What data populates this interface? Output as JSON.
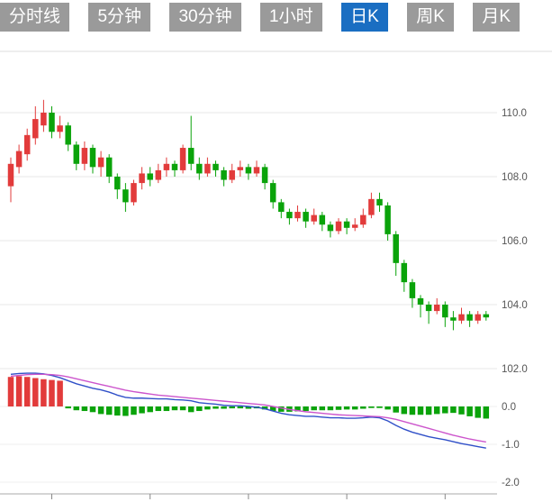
{
  "tabs": {
    "items": [
      {
        "label": "分时线",
        "active": false
      },
      {
        "label": "5分钟",
        "active": false
      },
      {
        "label": "30分钟",
        "active": false
      },
      {
        "label": "1小时",
        "active": false
      },
      {
        "label": "日K",
        "active": true
      },
      {
        "label": "周K",
        "active": false
      },
      {
        "label": "月K",
        "active": false
      }
    ],
    "inactive_bg": "#9a9a9a",
    "active_bg": "#1a6ec2",
    "text_color": "#ffffff"
  },
  "chart_data": {
    "type": "candlestick",
    "subtype": "daily-k-with-macd",
    "title": "",
    "up_color": "#e23b3b",
    "down_color": "#0aa30a",
    "dif_color": "#3050c8",
    "dea_color": "#cc55cc",
    "grid_color": "#e7e7e7",
    "axis_label_color": "#555555",
    "price_axis": {
      "side": "right",
      "ticks": [
        110.0,
        108.0,
        106.0,
        104.0,
        102.0
      ]
    },
    "macd_axis": {
      "side": "right",
      "ticks": [
        0.0,
        -1.0,
        -2.0
      ]
    },
    "candles": [
      [
        107.7,
        108.6,
        107.2,
        108.4
      ],
      [
        108.3,
        109.0,
        108.1,
        108.8
      ],
      [
        108.7,
        109.5,
        108.5,
        109.3
      ],
      [
        109.2,
        110.2,
        109.0,
        109.8
      ],
      [
        109.6,
        110.4,
        109.4,
        110.0
      ],
      [
        110.0,
        110.2,
        109.2,
        109.4
      ],
      [
        109.4,
        109.9,
        109.2,
        109.6
      ],
      [
        109.6,
        109.7,
        108.8,
        109.0
      ],
      [
        109.0,
        109.1,
        108.2,
        108.4
      ],
      [
        108.4,
        109.1,
        108.2,
        108.9
      ],
      [
        108.9,
        109.0,
        108.1,
        108.3
      ],
      [
        108.3,
        108.8,
        108.0,
        108.6
      ],
      [
        108.6,
        108.7,
        107.8,
        108.0
      ],
      [
        108.0,
        108.1,
        107.3,
        107.6
      ],
      [
        107.6,
        107.8,
        106.9,
        107.2
      ],
      [
        107.2,
        107.9,
        107.1,
        107.8
      ],
      [
        107.8,
        108.3,
        107.6,
        108.1
      ],
      [
        108.1,
        108.3,
        107.7,
        107.9
      ],
      [
        107.9,
        108.4,
        107.8,
        108.2
      ],
      [
        108.2,
        108.6,
        108.0,
        108.4
      ],
      [
        108.4,
        108.5,
        108.0,
        108.2
      ],
      [
        108.2,
        109.0,
        108.1,
        108.9
      ],
      [
        108.9,
        109.9,
        108.2,
        108.4
      ],
      [
        108.4,
        108.6,
        107.9,
        108.1
      ],
      [
        108.1,
        108.6,
        108.0,
        108.4
      ],
      [
        108.4,
        108.5,
        108.0,
        108.2
      ],
      [
        108.2,
        108.3,
        107.7,
        107.9
      ],
      [
        107.9,
        108.4,
        107.8,
        108.2
      ],
      [
        108.2,
        108.5,
        108.0,
        108.3
      ],
      [
        108.3,
        108.4,
        107.9,
        108.1
      ],
      [
        108.1,
        108.5,
        108.0,
        108.3
      ],
      [
        108.3,
        108.4,
        107.6,
        107.8
      ],
      [
        107.8,
        107.9,
        107.0,
        107.2
      ],
      [
        107.2,
        107.3,
        106.7,
        106.9
      ],
      [
        106.9,
        107.0,
        106.5,
        106.7
      ],
      [
        106.7,
        107.1,
        106.6,
        106.9
      ],
      [
        106.9,
        107.0,
        106.4,
        106.6
      ],
      [
        106.6,
        107.0,
        106.5,
        106.8
      ],
      [
        106.8,
        106.9,
        106.3,
        106.5
      ],
      [
        106.5,
        106.6,
        106.1,
        106.3
      ],
      [
        106.3,
        106.7,
        106.2,
        106.6
      ],
      [
        106.6,
        106.7,
        106.2,
        106.4
      ],
      [
        106.4,
        106.7,
        106.3,
        106.5
      ],
      [
        106.5,
        107.0,
        106.4,
        106.8
      ],
      [
        106.8,
        107.5,
        106.7,
        107.3
      ],
      [
        107.3,
        107.5,
        106.9,
        107.1
      ],
      [
        107.1,
        107.2,
        106.0,
        106.2
      ],
      [
        106.2,
        106.3,
        104.9,
        105.3
      ],
      [
        105.3,
        105.4,
        104.4,
        104.7
      ],
      [
        104.7,
        104.8,
        103.9,
        104.2
      ],
      [
        104.2,
        104.3,
        103.6,
        104.0
      ],
      [
        104.0,
        104.1,
        103.4,
        103.8
      ],
      [
        103.8,
        104.2,
        103.7,
        104.0
      ],
      [
        104.0,
        104.1,
        103.3,
        103.6
      ],
      [
        103.6,
        103.8,
        103.2,
        103.5
      ],
      [
        103.5,
        103.9,
        103.4,
        103.7
      ],
      [
        103.7,
        103.8,
        103.3,
        103.5
      ],
      [
        103.5,
        103.8,
        103.4,
        103.7
      ],
      [
        103.7,
        103.8,
        103.5,
        103.6
      ]
    ],
    "macd": {
      "dif": [
        0.85,
        0.87,
        0.88,
        0.88,
        0.86,
        0.82,
        0.76,
        0.68,
        0.6,
        0.54,
        0.48,
        0.44,
        0.38,
        0.3,
        0.24,
        0.22,
        0.22,
        0.21,
        0.2,
        0.2,
        0.18,
        0.17,
        0.15,
        0.1,
        0.08,
        0.06,
        0.03,
        0.02,
        0.02,
        0.0,
        -0.02,
        -0.06,
        -0.12,
        -0.18,
        -0.22,
        -0.24,
        -0.26,
        -0.26,
        -0.28,
        -0.3,
        -0.3,
        -0.31,
        -0.31,
        -0.3,
        -0.28,
        -0.3,
        -0.38,
        -0.5,
        -0.6,
        -0.68,
        -0.74,
        -0.8,
        -0.84,
        -0.88,
        -0.93,
        -0.98,
        -1.02,
        -1.06,
        -1.1
      ],
      "dea": [
        0.8,
        0.82,
        0.84,
        0.85,
        0.85,
        0.84,
        0.82,
        0.78,
        0.73,
        0.68,
        0.63,
        0.58,
        0.53,
        0.48,
        0.43,
        0.39,
        0.36,
        0.33,
        0.3,
        0.28,
        0.26,
        0.24,
        0.22,
        0.2,
        0.18,
        0.16,
        0.14,
        0.12,
        0.1,
        0.08,
        0.06,
        0.04,
        0.0,
        -0.04,
        -0.08,
        -0.11,
        -0.14,
        -0.16,
        -0.18,
        -0.2,
        -0.22,
        -0.23,
        -0.24,
        -0.25,
        -0.26,
        -0.27,
        -0.3,
        -0.34,
        -0.4,
        -0.46,
        -0.52,
        -0.58,
        -0.64,
        -0.7,
        -0.76,
        -0.81,
        -0.86,
        -0.9,
        -0.94
      ],
      "hist": [
        0.78,
        0.8,
        0.78,
        0.75,
        0.72,
        0.7,
        0.68,
        -0.05,
        -0.1,
        -0.12,
        -0.15,
        -0.2,
        -0.22,
        -0.24,
        -0.25,
        -0.22,
        -0.18,
        -0.15,
        -0.12,
        -0.12,
        -0.1,
        -0.1,
        -0.15,
        -0.12,
        -0.08,
        -0.06,
        -0.06,
        -0.05,
        -0.05,
        -0.06,
        -0.05,
        -0.08,
        -0.12,
        -0.14,
        -0.14,
        -0.13,
        -0.12,
        -0.1,
        -0.1,
        -0.1,
        -0.09,
        -0.08,
        -0.08,
        -0.06,
        -0.04,
        -0.04,
        -0.08,
        -0.16,
        -0.2,
        -0.22,
        -0.22,
        -0.22,
        -0.2,
        -0.18,
        -0.17,
        -0.21,
        -0.26,
        -0.3,
        -0.32
      ]
    }
  }
}
